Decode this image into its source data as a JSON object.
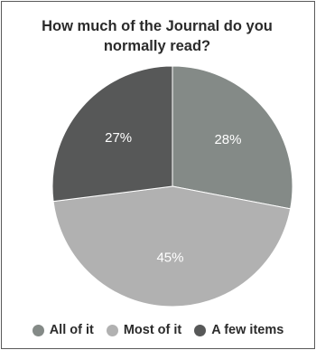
{
  "chart_data": {
    "type": "pie",
    "title": "How much of the Journal do you normally read?",
    "title_lines": [
      "How much of the Journal do you",
      "normally read?"
    ],
    "categories": [
      "All of it",
      "Most of it",
      "A few items"
    ],
    "values": [
      28,
      45,
      27
    ],
    "labels": [
      "28%",
      "45%",
      "27%"
    ],
    "colors": [
      "#848a87",
      "#b1b1b1",
      "#575858"
    ],
    "legend_position": "bottom"
  }
}
